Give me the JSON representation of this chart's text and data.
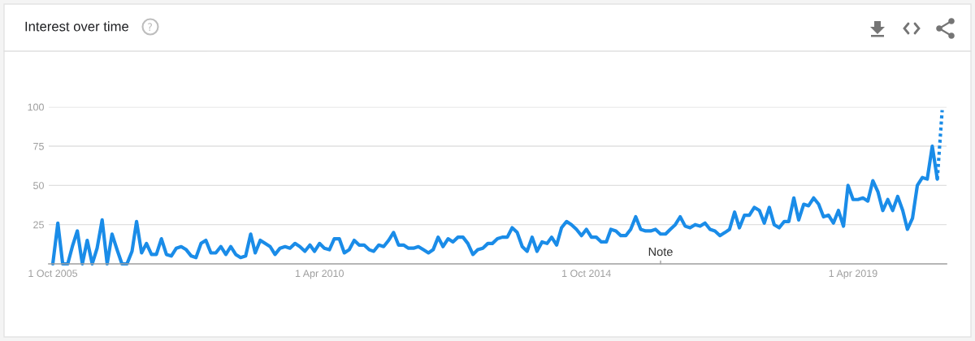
{
  "chart_data": {
    "type": "line",
    "title": "Interest over time",
    "x": [
      "2005-10",
      "2005-11",
      "2005-12",
      "2006-01",
      "2006-02",
      "2006-03",
      "2006-04",
      "2006-05",
      "2006-06",
      "2006-07",
      "2006-08",
      "2006-09",
      "2006-10",
      "2006-11",
      "2006-12",
      "2007-01",
      "2007-02",
      "2007-03",
      "2007-04",
      "2007-05",
      "2007-06",
      "2007-07",
      "2007-08",
      "2007-09",
      "2007-10",
      "2007-11",
      "2007-12",
      "2008-01",
      "2008-02",
      "2008-03",
      "2008-04",
      "2008-05",
      "2008-06",
      "2008-07",
      "2008-08",
      "2008-09",
      "2008-10",
      "2008-11",
      "2008-12",
      "2009-01",
      "2009-02",
      "2009-03",
      "2009-04",
      "2009-05",
      "2009-06",
      "2009-07",
      "2009-08",
      "2009-09",
      "2009-10",
      "2009-11",
      "2009-12",
      "2010-01",
      "2010-02",
      "2010-03",
      "2010-04",
      "2010-05",
      "2010-06",
      "2010-07",
      "2010-08",
      "2010-09",
      "2010-10",
      "2010-11",
      "2010-12",
      "2011-01",
      "2011-02",
      "2011-03",
      "2011-04",
      "2011-05",
      "2011-06",
      "2011-07",
      "2011-08",
      "2011-09",
      "2011-10",
      "2011-11",
      "2011-12",
      "2012-01",
      "2012-02",
      "2012-03",
      "2012-04",
      "2012-05",
      "2012-06",
      "2012-07",
      "2012-08",
      "2012-09",
      "2012-10",
      "2012-11",
      "2012-12",
      "2013-01",
      "2013-02",
      "2013-03",
      "2013-04",
      "2013-05",
      "2013-06",
      "2013-07",
      "2013-08",
      "2013-09",
      "2013-10",
      "2013-11",
      "2013-12",
      "2014-01",
      "2014-02",
      "2014-03",
      "2014-04",
      "2014-05",
      "2014-06",
      "2014-07",
      "2014-08",
      "2014-09",
      "2014-10",
      "2014-11",
      "2014-12",
      "2015-01",
      "2015-02",
      "2015-03",
      "2015-04",
      "2015-05",
      "2015-06",
      "2015-07",
      "2015-08",
      "2015-09",
      "2015-10",
      "2015-11",
      "2015-12",
      "2016-01",
      "2016-02",
      "2016-03",
      "2016-04",
      "2016-05",
      "2016-06",
      "2016-07",
      "2016-08",
      "2016-09",
      "2016-10",
      "2016-11",
      "2016-12",
      "2017-01",
      "2017-02",
      "2017-03",
      "2017-04",
      "2017-05",
      "2017-06",
      "2017-07",
      "2017-08",
      "2017-09",
      "2017-10",
      "2017-11",
      "2017-12",
      "2018-01",
      "2018-02",
      "2018-03",
      "2018-04",
      "2018-05",
      "2018-06",
      "2018-07",
      "2018-08",
      "2018-09",
      "2018-10",
      "2018-11",
      "2018-12",
      "2019-01",
      "2019-02",
      "2019-03",
      "2019-04",
      "2019-05",
      "2019-06",
      "2019-07",
      "2019-08",
      "2019-09",
      "2019-10",
      "2019-11",
      "2019-12",
      "2020-01",
      "2020-02",
      "2020-03",
      "2020-04",
      "2020-05",
      "2020-06",
      "2020-07",
      "2020-08",
      "2020-09"
    ],
    "series": [
      {
        "color": "#1a8ce8",
        "line_style": "solid",
        "values": [
          0,
          26,
          0,
          0,
          12,
          21,
          0,
          15,
          0,
          10,
          28,
          0,
          19,
          9,
          0,
          0,
          8,
          27,
          7,
          13,
          6,
          6,
          16,
          6,
          5,
          10,
          11,
          9,
          5,
          4,
          13,
          15,
          7,
          7,
          11,
          6,
          11,
          6,
          4,
          5,
          19,
          7,
          15,
          13,
          11,
          6,
          10,
          11,
          10,
          13,
          11,
          8,
          12,
          8,
          13,
          10,
          9,
          16,
          16,
          7,
          9,
          15,
          12,
          12,
          9,
          8,
          12,
          11,
          15,
          20,
          12,
          12,
          10,
          10,
          11,
          9,
          7,
          9,
          17,
          11,
          16,
          14,
          17,
          17,
          13,
          6,
          9,
          10,
          13,
          13,
          16,
          17,
          17,
          23,
          20,
          11,
          8,
          17,
          8,
          14,
          13,
          17,
          12,
          23,
          27,
          25,
          22,
          18,
          22,
          17,
          17,
          14,
          14,
          22,
          21,
          18,
          18,
          22,
          30,
          22,
          21,
          21,
          22,
          19,
          19,
          22,
          25,
          30,
          24,
          23,
          25,
          24,
          26,
          22,
          21,
          18,
          20,
          22,
          33,
          23,
          31,
          31,
          36,
          34,
          26,
          36,
          25,
          23,
          27,
          27,
          42,
          28,
          38,
          37,
          42,
          38,
          30,
          31,
          26,
          34,
          24,
          50,
          41,
          41,
          42,
          40,
          53,
          46,
          34,
          41,
          34,
          43,
          34,
          22,
          29,
          50,
          55,
          54,
          75,
          54
        ]
      },
      {
        "color": "#1a8ce8",
        "line_style": "dotted",
        "x": [
          "2020-09",
          "2020-10"
        ],
        "values": [
          54,
          98
        ]
      }
    ],
    "xlim": [
      "2005-09-06",
      "2020-10-28"
    ],
    "xticks": [
      {
        "value": "2005-10-01",
        "label": "1 Oct 2005"
      },
      {
        "value": "2010-04-01",
        "label": "1 Apr 2010"
      },
      {
        "value": "2014-10-01",
        "label": "1 Oct 2014"
      },
      {
        "value": "2019-04-01",
        "label": "1 Apr 2019"
      }
    ],
    "ylim": [
      0,
      100
    ],
    "yticks": [
      25,
      50,
      75,
      100
    ],
    "grid": "y",
    "annotations": [
      "Note"
    ]
  }
}
